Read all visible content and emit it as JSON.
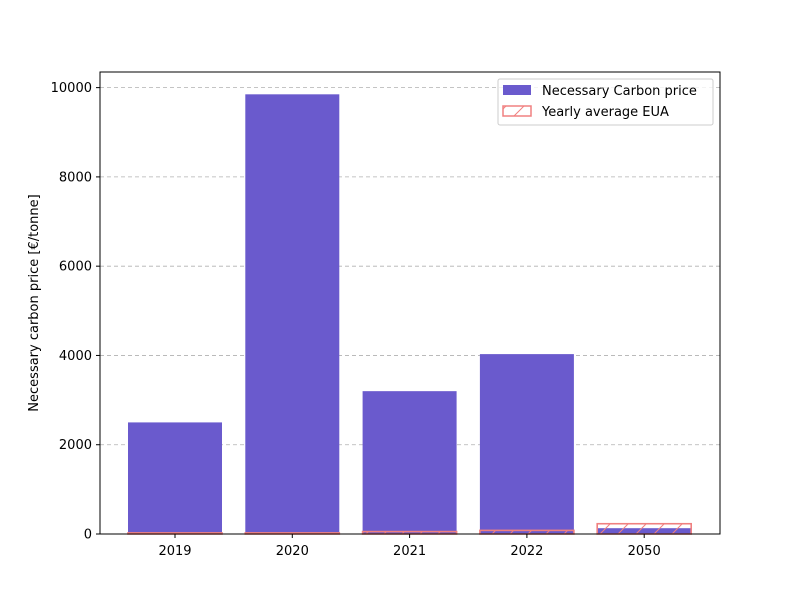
{
  "chart_data": {
    "type": "bar",
    "title": "",
    "xlabel": "",
    "ylabel": "Necessary carbon price [€/tonne]",
    "categories": [
      "2019",
      "2020",
      "2021",
      "2022",
      "2050"
    ],
    "series": [
      {
        "name": "Necessary Carbon price",
        "values": [
          2500,
          9850,
          3200,
          4030,
          130
        ],
        "color": "#6a5acd",
        "style": "solid"
      },
      {
        "name": "Yearly average EUA",
        "values": [
          25,
          25,
          54,
          81,
          230
        ],
        "color": "#f08080",
        "style": "hatched-outline"
      }
    ],
    "ylim": [
      0,
      10350
    ],
    "yticks": [
      0,
      2000,
      4000,
      6000,
      8000,
      10000
    ],
    "grid": "y-dashed",
    "legend_position": "top-right"
  }
}
